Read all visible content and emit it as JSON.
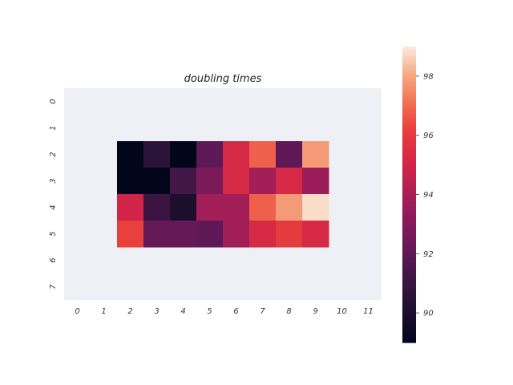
{
  "chart_data": {
    "type": "heatmap",
    "title": "doubling times",
    "xlabel": "",
    "ylabel": "",
    "x_categories": [
      "0",
      "1",
      "2",
      "3",
      "4",
      "5",
      "6",
      "7",
      "8",
      "9",
      "10",
      "11"
    ],
    "y_categories": [
      "0",
      "1",
      "2",
      "3",
      "4",
      "5",
      "6",
      "7"
    ],
    "values": [
      [
        null,
        null,
        null,
        null,
        null,
        null,
        null,
        null,
        null,
        null,
        null,
        null
      ],
      [
        null,
        null,
        null,
        null,
        null,
        null,
        null,
        null,
        null,
        null,
        null,
        null
      ],
      [
        null,
        null,
        89.0,
        90.6,
        89.0,
        92.0,
        95.2,
        96.8,
        92.0,
        97.8,
        null,
        null
      ],
      [
        null,
        null,
        89.0,
        89.0,
        91.2,
        92.8,
        95.2,
        93.8,
        95.2,
        93.6,
        null,
        null
      ],
      [
        null,
        null,
        95.0,
        91.0,
        90.0,
        93.8,
        93.8,
        96.8,
        97.8,
        98.8,
        null,
        null
      ],
      [
        null,
        null,
        96.2,
        92.2,
        92.2,
        92.0,
        93.8,
        95.2,
        96.0,
        95.2,
        null,
        null
      ],
      [
        null,
        null,
        null,
        null,
        null,
        null,
        null,
        null,
        null,
        null,
        null,
        null
      ],
      [
        null,
        null,
        null,
        null,
        null,
        null,
        null,
        null,
        null,
        null,
        null,
        null
      ]
    ],
    "colorbar": {
      "min": 89.0,
      "max": 99.0,
      "ticks": [
        "90",
        "92",
        "94",
        "96",
        "98"
      ],
      "colormap": "rocket"
    },
    "background_color": "#eff0f5",
    "grid": false
  }
}
